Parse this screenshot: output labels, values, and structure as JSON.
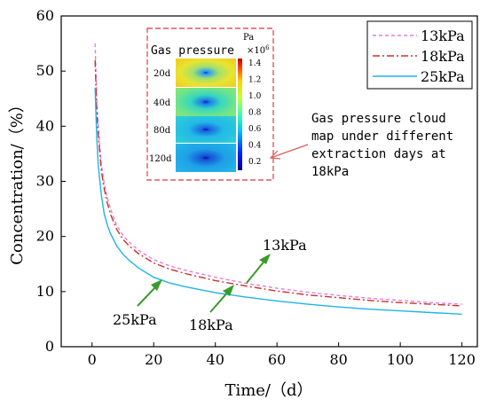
{
  "chart_data": {
    "type": "line",
    "xlabel": "Time/（d）",
    "ylabel": "Concentration/（%）",
    "xlim": [
      -10,
      125
    ],
    "ylim": [
      0,
      60
    ],
    "x_ticks": [
      0,
      20,
      40,
      60,
      80,
      100,
      120
    ],
    "y_ticks": [
      0,
      10,
      20,
      30,
      40,
      50,
      60
    ],
    "grid": false,
    "legend_position": "top-right",
    "x": [
      1,
      1.5,
      2,
      3,
      4,
      5,
      6,
      8,
      10,
      12,
      15,
      20,
      25,
      30,
      40,
      50,
      60,
      70,
      80,
      90,
      100,
      110,
      120
    ],
    "series": [
      {
        "name": "13kPa",
        "color": "#e87ae0",
        "dash": "4,3",
        "values": [
          55,
          45,
          40,
          33,
          29.5,
          27,
          25,
          22,
          20.2,
          19,
          17.5,
          15.8,
          14.7,
          13.9,
          12.6,
          11.5,
          10.6,
          9.9,
          9.3,
          8.8,
          8.4,
          8.0,
          7.7
        ]
      },
      {
        "name": "18kPa",
        "color": "#c8322d",
        "dash": "8,3,2,3",
        "values": [
          52,
          43,
          38.5,
          32,
          28.5,
          26,
          24,
          21.3,
          19.5,
          18.3,
          16.9,
          15.2,
          14.1,
          13.3,
          12,
          11,
          10.1,
          9.4,
          8.9,
          8.4,
          8.0,
          7.7,
          7.4
        ]
      },
      {
        "name": "25kPa",
        "color": "#1fb4e8",
        "dash": "",
        "values": [
          47,
          38,
          33,
          27.5,
          24,
          22,
          20.5,
          18.3,
          16.8,
          15.7,
          14.3,
          12.6,
          11.6,
          10.9,
          9.8,
          9.0,
          8.3,
          7.7,
          7.2,
          6.8,
          6.5,
          6.2,
          5.9
        ]
      }
    ],
    "annotations": [
      {
        "text": "13kPa"
      },
      {
        "text": "18kPa"
      },
      {
        "text": "25kPa"
      },
      {
        "text": [
          "Gas pressure cloud",
          "map under different",
          "extraction days at",
          "18kPa"
        ]
      }
    ],
    "inset": {
      "title": "Gas pressure",
      "unit": "Pa",
      "multiplier_base": "×10",
      "multiplier_exp": "6",
      "rows": [
        "20d",
        "40d",
        "80d",
        "120d"
      ],
      "colorbar_ticks": [
        "1.4",
        "1.2",
        "1.0",
        "0.8",
        "0.6",
        "0.4",
        "0.2"
      ]
    }
  }
}
